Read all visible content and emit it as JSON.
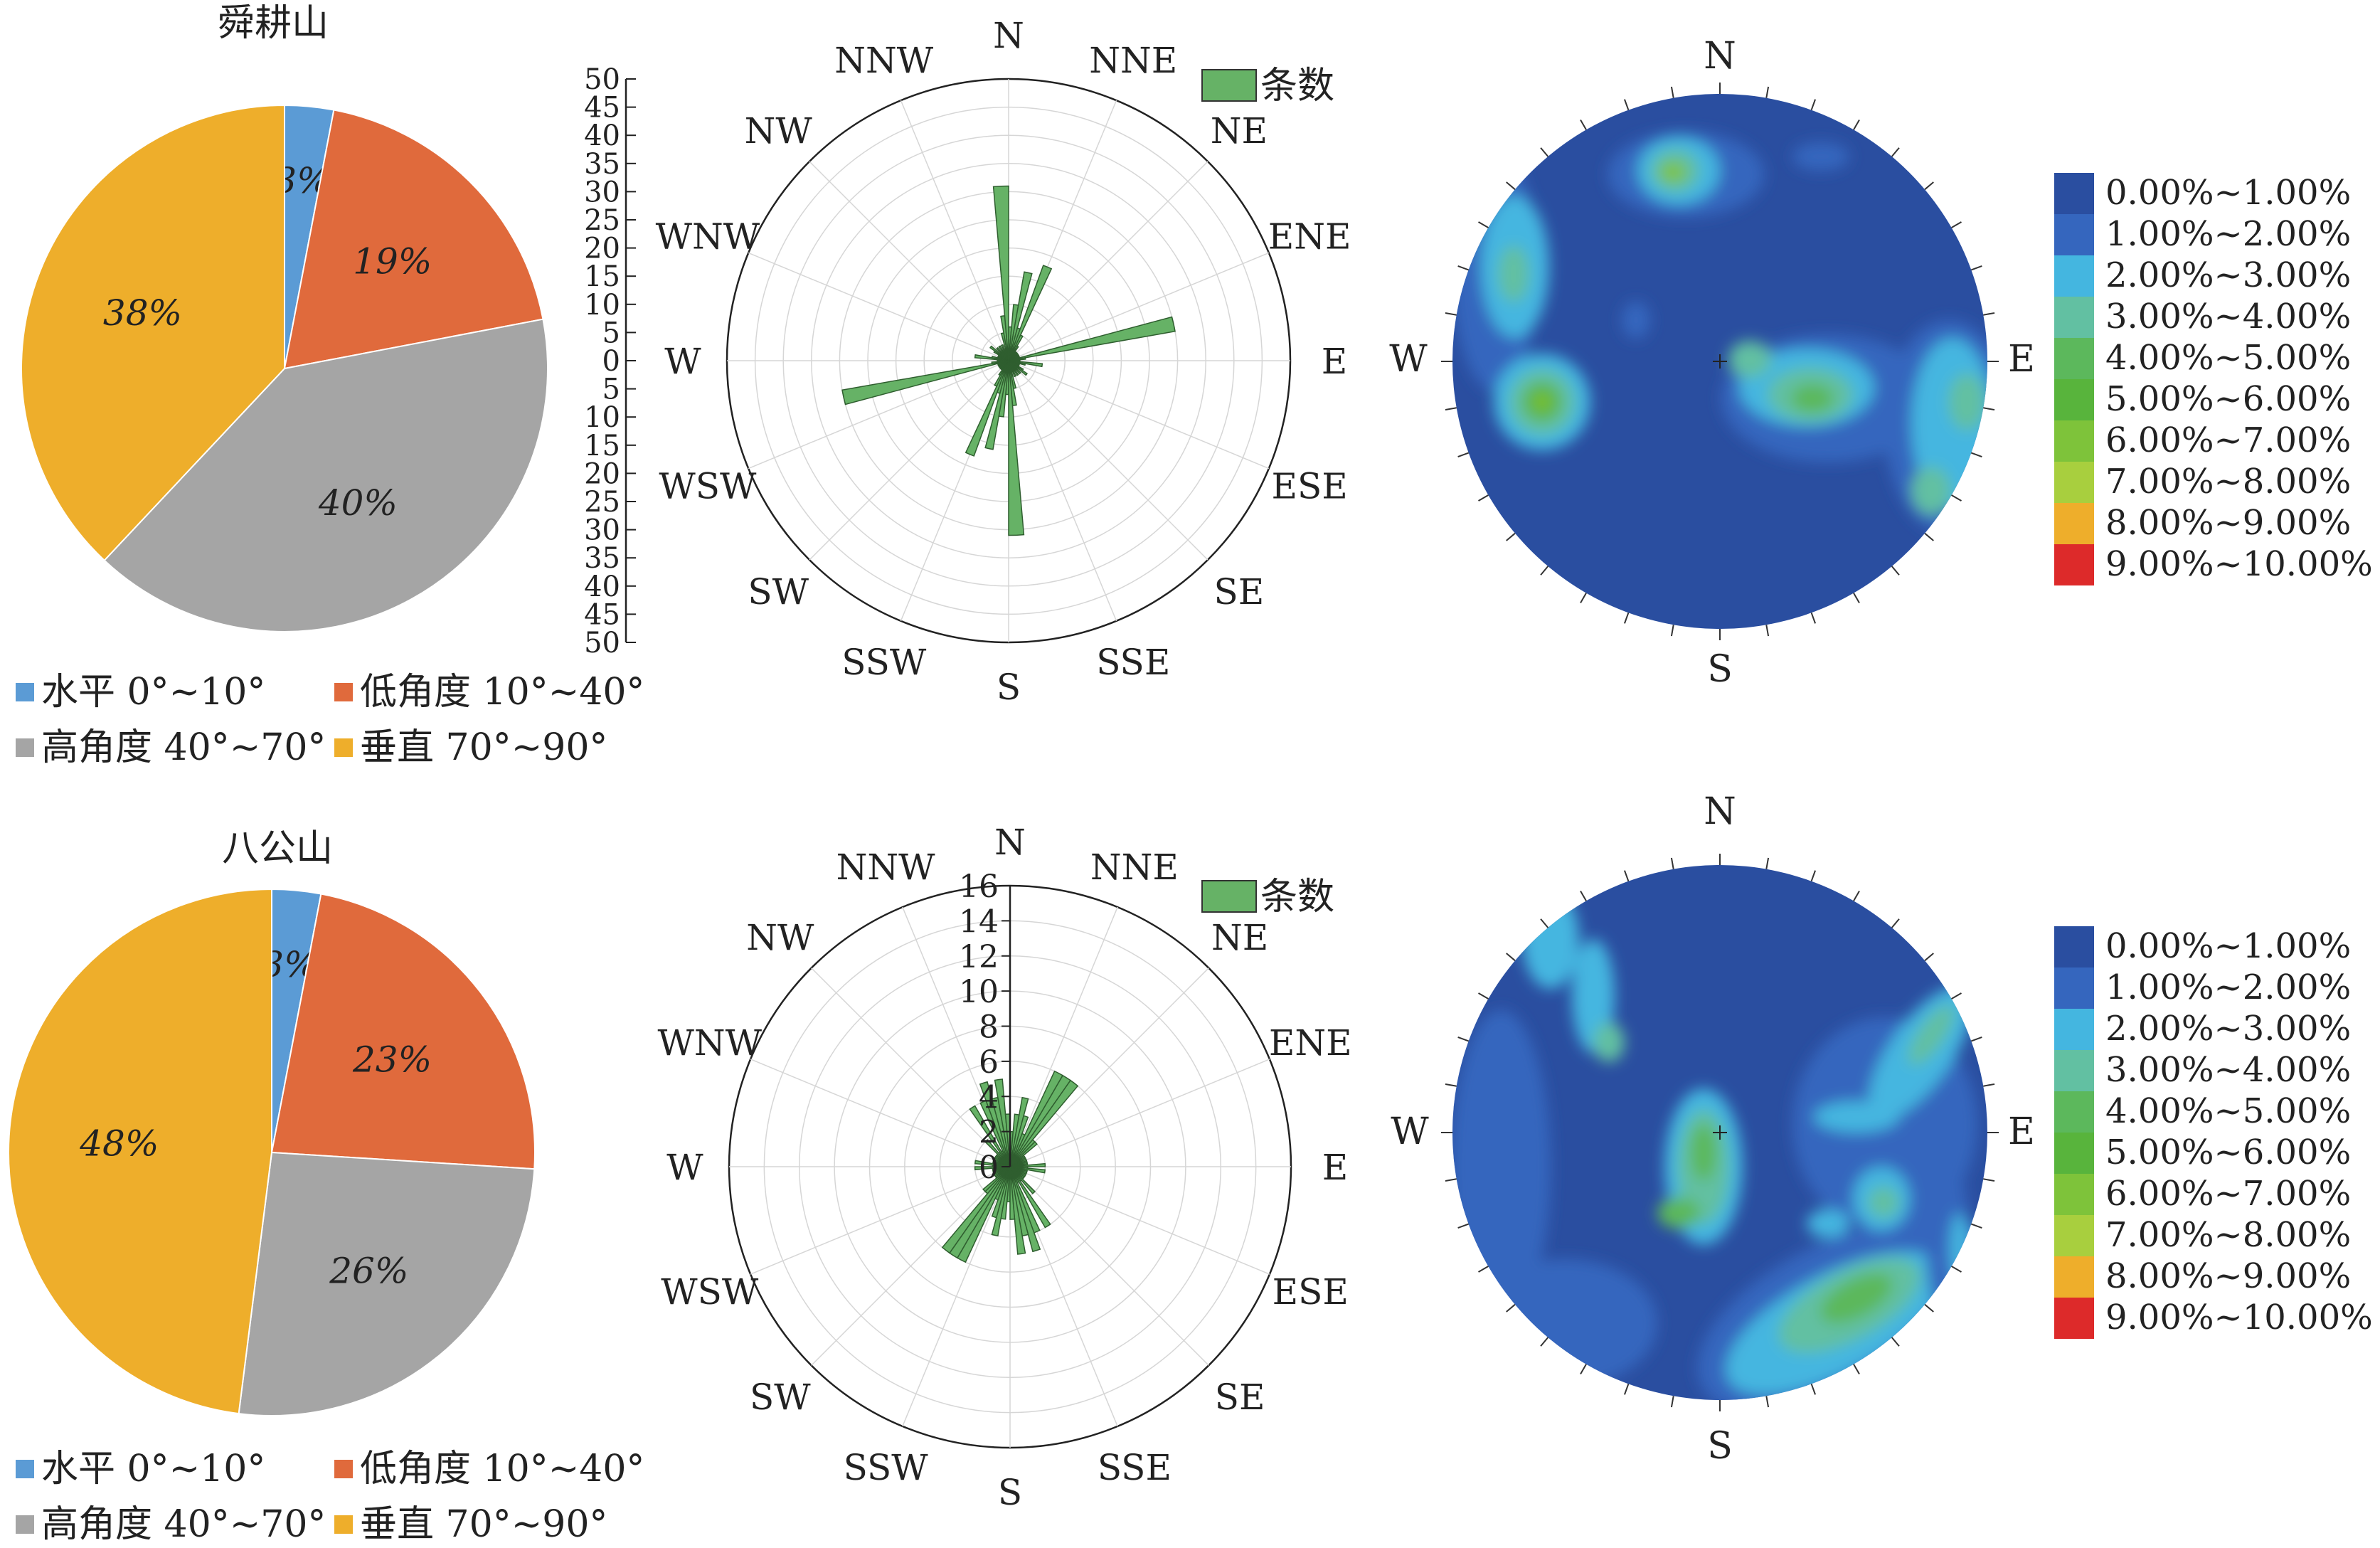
{
  "chart_data": [
    {
      "type": "pie",
      "title": "舜耕山",
      "categories": [
        "水平 0°~10°",
        "低角度 10°~40°",
        "高角度 40°~70°",
        "垂直 70°~90°"
      ],
      "values": [
        3,
        19,
        40,
        38
      ],
      "labels": [
        "3%",
        "19%",
        "40%",
        "38%"
      ],
      "colors": [
        "#5b9bd5",
        "#e06a3c",
        "#a5a5a5",
        "#eeae2b"
      ],
      "legend_placement": "bottom"
    },
    {
      "type": "rose",
      "legend": [
        "条数"
      ],
      "directions": [
        "N",
        "NNE",
        "NE",
        "ENE",
        "E",
        "ESE",
        "SE",
        "SSE",
        "S",
        "SSW",
        "SW",
        "WSW",
        "W",
        "WNW",
        "NW",
        "NNW"
      ],
      "radial_ticks": [
        "0",
        "5",
        "10",
        "15",
        "20",
        "25",
        "30",
        "35",
        "40",
        "45",
        "50"
      ],
      "rmax": 50,
      "strike_bins_deg": [
        0,
        5,
        10,
        15,
        20,
        25,
        30,
        35,
        40,
        45,
        50,
        55,
        60,
        65,
        70,
        75,
        80,
        85,
        90,
        95,
        100,
        105,
        110,
        115,
        120,
        125,
        130,
        135,
        140,
        145,
        150,
        155,
        160,
        165,
        170,
        175
      ],
      "counts": [
        6,
        10,
        16,
        6,
        18,
        5,
        3,
        2,
        2,
        2,
        2,
        2,
        2,
        2,
        2,
        30,
        3,
        2,
        2,
        6,
        3,
        2,
        2,
        2,
        3,
        4,
        2,
        3,
        2,
        3,
        2,
        3,
        2,
        5,
        8,
        31
      ],
      "bar_color": "#66b266"
    },
    {
      "type": "heatmap",
      "subtype": "stereonet-density",
      "direction_labels": {
        "N": "N",
        "E": "E",
        "S": "S",
        "W": "W"
      },
      "legend": [
        "0.00%~1.00%",
        "1.00%~2.00%",
        "2.00%~3.00%",
        "3.00%~4.00%",
        "4.00%~5.00%",
        "5.00%~6.00%",
        "6.00%~7.00%",
        "7.00%~8.00%",
        "8.00%~9.00%",
        "9.00%~10.00%"
      ],
      "legend_colors": [
        "#2a4ea0",
        "#3566be",
        "#44b6e0",
        "#62c0a2",
        "#5cb85c",
        "#58b43c",
        "#7ec33a",
        "#a8cf3e",
        "#eeae2b",
        "#dd2a2a"
      ]
    },
    {
      "type": "pie",
      "title": "八公山",
      "categories": [
        "水平 0°~10°",
        "低角度 10°~40°",
        "高角度 40°~70°",
        "垂直 70°~90°"
      ],
      "values": [
        3,
        23,
        26,
        48
      ],
      "labels": [
        "3%",
        "23%",
        "26%",
        "48%"
      ],
      "colors": [
        "#5b9bd5",
        "#e06a3c",
        "#a5a5a5",
        "#eeae2b"
      ],
      "legend_placement": "bottom"
    },
    {
      "type": "rose",
      "legend": [
        "条数"
      ],
      "directions": [
        "N",
        "NNE",
        "NE",
        "ENE",
        "E",
        "ESE",
        "SE",
        "SSE",
        "S",
        "SSW",
        "SW",
        "WSW",
        "W",
        "WNW",
        "NW",
        "NNW"
      ],
      "radial_ticks": [
        "0",
        "2",
        "4",
        "6",
        "8",
        "10",
        "12",
        "14",
        "16"
      ],
      "rmax": 16,
      "strike_bins_deg": [
        0,
        5,
        10,
        15,
        20,
        25,
        30,
        35,
        40,
        45,
        50,
        55,
        60,
        65,
        70,
        75,
        80,
        85,
        90,
        95,
        100,
        105,
        110,
        115,
        120,
        125,
        130,
        135,
        140,
        145,
        150,
        155,
        160,
        165,
        170,
        175
      ],
      "counts": [
        2,
        3,
        4,
        3,
        2,
        6,
        6,
        6,
        2,
        2,
        1,
        1,
        1,
        1,
        1,
        1,
        1,
        2,
        1,
        2,
        1,
        1,
        1,
        1,
        1,
        1,
        1,
        2,
        1,
        4,
        1,
        4,
        5,
        4,
        5,
        3
      ],
      "bar_color": "#66b266"
    },
    {
      "type": "heatmap",
      "subtype": "stereonet-density",
      "direction_labels": {
        "N": "N",
        "E": "E",
        "S": "S",
        "W": "W"
      },
      "legend": [
        "0.00%~1.00%",
        "1.00%~2.00%",
        "2.00%~3.00%",
        "3.00%~4.00%",
        "4.00%~5.00%",
        "5.00%~6.00%",
        "6.00%~7.00%",
        "7.00%~8.00%",
        "8.00%~9.00%",
        "9.00%~10.00%"
      ],
      "legend_colors": [
        "#2a4ea0",
        "#3566be",
        "#44b6e0",
        "#62c0a2",
        "#5cb85c",
        "#58b43c",
        "#7ec33a",
        "#a8cf3e",
        "#eeae2b",
        "#dd2a2a"
      ]
    }
  ]
}
